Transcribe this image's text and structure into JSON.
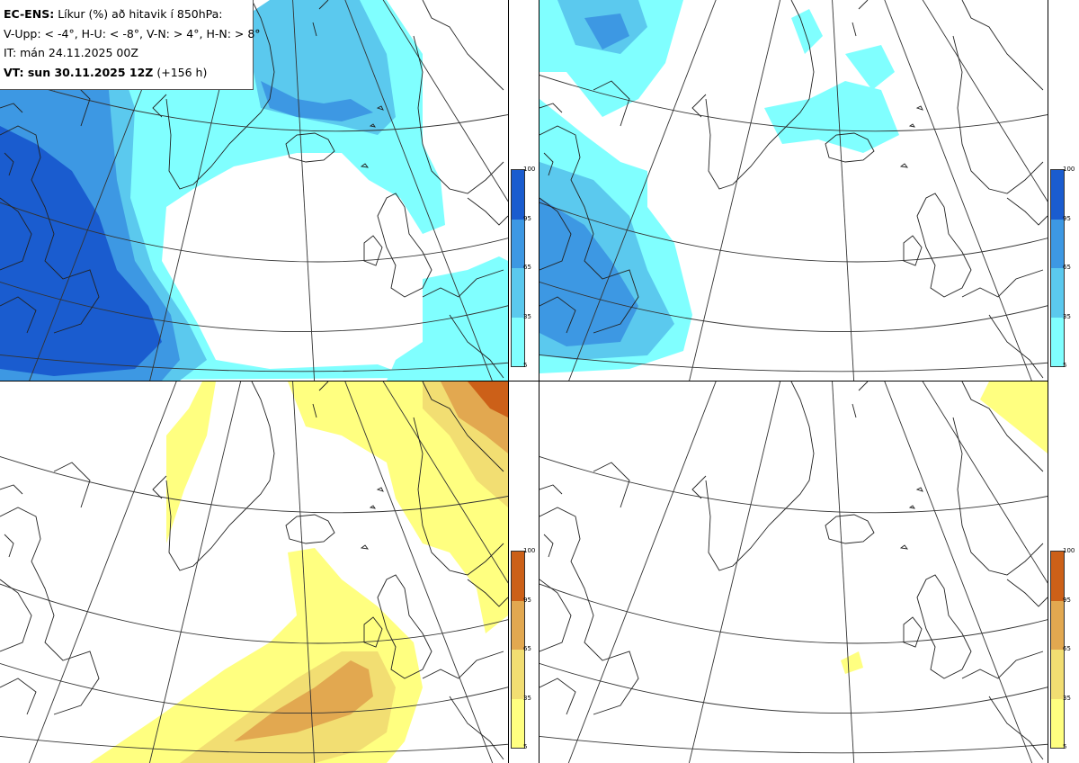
{
  "info": {
    "model": "EC-ENS:",
    "title_rest": "Líkur (%) að hitavik í 850hPa:",
    "categories": "V-Upp: < -4°, H-U: < -8°, V-N: > 4°, H-N: > 8°",
    "init_time": "IT: mán 24.11.2025 00Z",
    "valid_label": "VT: sun 30.11.2025 12Z",
    "lead": "(+156 h)"
  },
  "colorbar_ticks": [
    "100",
    "95",
    "65",
    "35",
    "5"
  ],
  "colors": {
    "cold_5": "#80ffff",
    "cold_35": "#5bc9ee",
    "cold_65": "#3d98e3",
    "cold_95": "#1a5ccf",
    "warm_5": "#ffff80",
    "warm_35": "#f2de72",
    "warm_65": "#e2a850",
    "warm_95": "#cc6018"
  },
  "panels": [
    {
      "id": "upper-left",
      "variable": "cold-lt-minus4"
    },
    {
      "id": "upper-right",
      "variable": "cold-lt-minus8"
    },
    {
      "id": "lower-left",
      "variable": "warm-gt-4"
    },
    {
      "id": "lower-right",
      "variable": "warm-gt-8"
    }
  ]
}
